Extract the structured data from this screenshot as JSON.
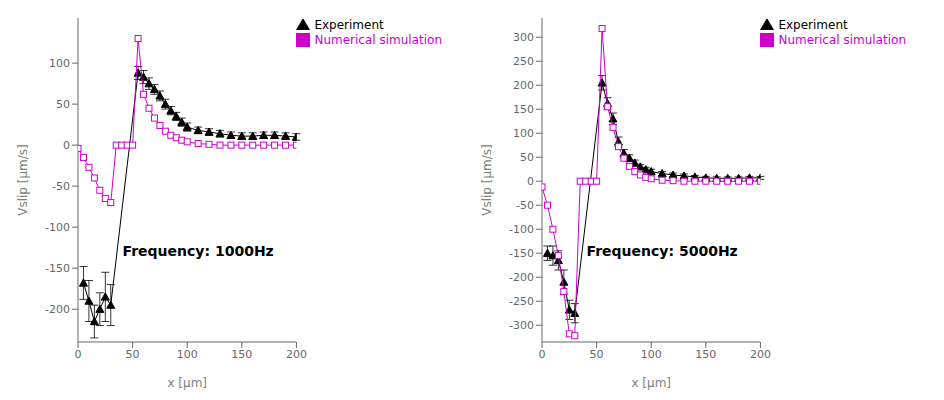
{
  "chart_data": [
    {
      "type": "line",
      "annotation": "Frequency: 1000Hz",
      "x_label": "x [μm]",
      "y_label": "Vslip [μm/s]",
      "xlim": [
        0,
        200
      ],
      "xticks": [
        0,
        50,
        100,
        150,
        200
      ],
      "ylim": [
        -240,
        155
      ],
      "yticks": [
        -200,
        -150,
        -100,
        -50,
        0,
        50,
        100
      ],
      "grid": false,
      "legend": "upper right",
      "series": [
        {
          "name": "Experiment",
          "color": "#000000",
          "marker": "triangle",
          "line_style": "solid",
          "x": [
            5,
            10,
            15,
            20,
            25,
            30,
            55,
            60,
            65,
            70,
            75,
            80,
            85,
            90,
            95,
            100,
            110,
            120,
            130,
            140,
            150,
            160,
            170,
            180,
            190,
            200
          ],
          "values": [
            -168,
            -190,
            -215,
            -200,
            -185,
            -195,
            88,
            83,
            75,
            68,
            60,
            50,
            42,
            35,
            28,
            22,
            18,
            16,
            14,
            12,
            11,
            11,
            12,
            12,
            11,
            10
          ],
          "errors": [
            20,
            25,
            20,
            20,
            30,
            25,
            8,
            8,
            7,
            6,
            6,
            6,
            5,
            5,
            5,
            5,
            4,
            4,
            4,
            4,
            4,
            4,
            4,
            4,
            4,
            4
          ]
        },
        {
          "name": "Numerical simulation",
          "color": "#cc00cc",
          "marker": "square",
          "line_style": "solid",
          "x": [
            0,
            5,
            10,
            15,
            20,
            25,
            30,
            35,
            40,
            45,
            50,
            55,
            60,
            65,
            70,
            75,
            80,
            85,
            90,
            95,
            100,
            110,
            120,
            130,
            140,
            150,
            160,
            170,
            180,
            190,
            200
          ],
          "values": [
            -4,
            -15,
            -27,
            -40,
            -55,
            -65,
            -70,
            0,
            0,
            0,
            0,
            130,
            62,
            45,
            33,
            24,
            17,
            12,
            9,
            6,
            4,
            2,
            1,
            0,
            0,
            0,
            0,
            0,
            0,
            0,
            0
          ]
        }
      ]
    },
    {
      "type": "line",
      "annotation": "Frequency: 5000Hz",
      "x_label": "x [μm]",
      "y_label": "Vslip [μm/s]",
      "xlim": [
        0,
        200
      ],
      "xticks": [
        0,
        50,
        100,
        150,
        200
      ],
      "ylim": [
        -335,
        340
      ],
      "yticks": [
        -300,
        -250,
        -200,
        -150,
        -100,
        -50,
        0,
        50,
        100,
        150,
        200,
        250,
        300
      ],
      "grid": false,
      "legend": "upper right",
      "series": [
        {
          "name": "Experiment",
          "color": "#000000",
          "marker": "triangle",
          "line_style": "solid",
          "x": [
            5,
            10,
            15,
            20,
            25,
            30,
            55,
            60,
            65,
            70,
            75,
            80,
            85,
            90,
            95,
            100,
            110,
            120,
            130,
            140,
            150,
            160,
            170,
            180,
            190,
            200
          ],
          "values": [
            -150,
            -155,
            -165,
            -210,
            -268,
            -275,
            205,
            162,
            130,
            82,
            58,
            48,
            38,
            30,
            24,
            20,
            16,
            13,
            11,
            9,
            7,
            6,
            6,
            6,
            7,
            7
          ],
          "errors": [
            15,
            20,
            20,
            25,
            20,
            20,
            15,
            12,
            12,
            10,
            8,
            7,
            6,
            5,
            5,
            5,
            4,
            4,
            4,
            3,
            3,
            3,
            3,
            3,
            3,
            3
          ]
        },
        {
          "name": "Numerical simulation",
          "color": "#cc00cc",
          "marker": "square",
          "line_style": "solid",
          "x": [
            0,
            5,
            10,
            15,
            20,
            25,
            30,
            35,
            40,
            45,
            50,
            55,
            60,
            65,
            70,
            75,
            80,
            85,
            90,
            95,
            100,
            110,
            120,
            130,
            140,
            150,
            160,
            170,
            180,
            190,
            200
          ],
          "values": [
            -12,
            -50,
            -100,
            -155,
            -230,
            -318,
            -322,
            0,
            0,
            0,
            0,
            318,
            155,
            112,
            72,
            48,
            31,
            20,
            13,
            8,
            5,
            2,
            1,
            0,
            0,
            0,
            0,
            0,
            0,
            0,
            0
          ]
        }
      ]
    }
  ]
}
